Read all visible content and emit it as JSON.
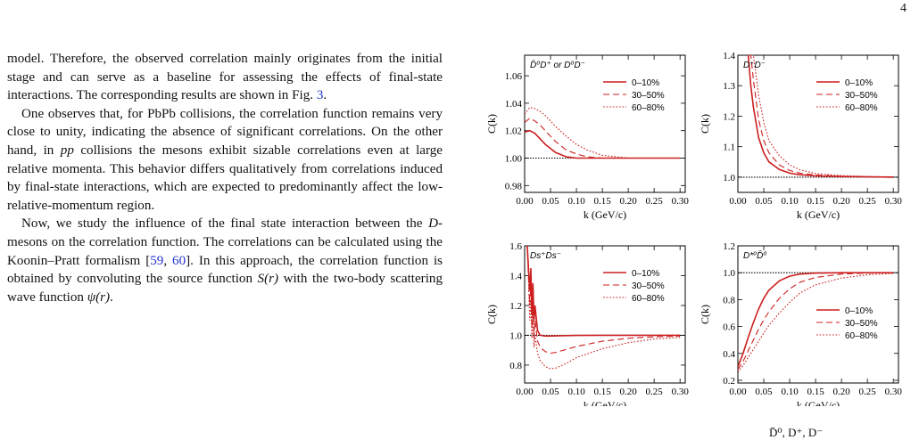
{
  "page": {
    "number": "4"
  },
  "body": {
    "p1": [
      "model. Therefore, the observed correlation mainly originates from the initial stage and can serve as a baseline for assessing the effects of final-state interactions. The corresponding results are shown in Fig. ",
      "3",
      "."
    ],
    "p2": [
      "One observes that, for PbPb collisions, the correlation function remains very close to unity, indicating the absence of significant correlations. On the other hand, in ",
      "pp",
      " collisions the mesons exhibit sizable correlations even at large relative momenta. This behavior differs qualitatively from correlations induced by final-state interactions, which are expected to predominantly affect the low-relative-momentum region."
    ],
    "p3": [
      "Now, we study the influence of the final state interaction between the ",
      "D",
      "-mesons on the correlation function. The correlations can be calculated using the Koonin–Pratt formalism [",
      "59",
      ", ",
      "60",
      "]. In this approach, the correlation function is obtained by convoluting the source function ",
      "S(r)",
      " with the two-body scattering wave function ",
      "ψ",
      "(r)",
      "."
    ]
  },
  "footer_fragment": "D̄⁰, D⁺, D⁻",
  "colors": {
    "curve": "#cc1f1f",
    "ref_line": "#000000",
    "link": "#2233cc"
  },
  "chart_data": [
    {
      "type": "line",
      "panel_label": "D̄⁰D⁺ or D⁰D⁻",
      "xlabel": "k (GeV/c)",
      "ylabel": "C(k)",
      "xlim": [
        0,
        0.31
      ],
      "ylim": [
        0.975,
        1.075
      ],
      "xticks": [
        "0.00",
        "0.05",
        "0.10",
        "0.15",
        "0.20",
        "0.25",
        "0.30"
      ],
      "yticks": [
        "0.98",
        "1.00",
        "1.02",
        "1.04",
        "1.06"
      ],
      "legend_position": "top-right",
      "reference_line": 1.0,
      "x": [
        0.0,
        0.01,
        0.02,
        0.03,
        0.04,
        0.05,
        0.06,
        0.08,
        0.1,
        0.12,
        0.15,
        0.2,
        0.25,
        0.3
      ],
      "series": [
        {
          "name": "0–10%",
          "style": "solid",
          "values": [
            1.019,
            1.02,
            1.018,
            1.014,
            1.01,
            1.007,
            1.004,
            1.001,
            1.0,
            1.0,
            1.0,
            1.0,
            1.0,
            1.0
          ]
        },
        {
          "name": "30–50%",
          "style": "dashed",
          "values": [
            1.026,
            1.029,
            1.027,
            1.024,
            1.02,
            1.016,
            1.012,
            1.006,
            1.003,
            1.001,
            1.0,
            1.0,
            1.0,
            1.0
          ]
        },
        {
          "name": "60–80%",
          "style": "dotted",
          "values": [
            1.032,
            1.037,
            1.036,
            1.034,
            1.031,
            1.027,
            1.023,
            1.016,
            1.01,
            1.006,
            1.002,
            1.0,
            1.0,
            1.0
          ]
        }
      ]
    },
    {
      "type": "line",
      "panel_label": "D⁺D⁻",
      "xlabel": "k (GeV/c)",
      "ylabel": "C(k)",
      "xlim": [
        0,
        0.31
      ],
      "ylim": [
        0.95,
        1.4
      ],
      "xticks": [
        "0.00",
        "0.05",
        "0.10",
        "0.15",
        "0.20",
        "0.25",
        "0.30"
      ],
      "yticks": [
        "1.0",
        "1.1",
        "1.2",
        "1.3",
        "1.4"
      ],
      "legend_position": "top-right",
      "reference_line": 1.0,
      "x": [
        0.02,
        0.025,
        0.03,
        0.04,
        0.05,
        0.06,
        0.08,
        0.1,
        0.12,
        0.15,
        0.2,
        0.25,
        0.3
      ],
      "series": [
        {
          "name": "0–10%",
          "style": "solid",
          "values": [
            1.4,
            1.3,
            1.23,
            1.13,
            1.08,
            1.05,
            1.025,
            1.013,
            1.008,
            1.004,
            1.002,
            1.001,
            1.0
          ]
        },
        {
          "name": "30–50%",
          "style": "dashed",
          "values": [
            1.4,
            1.4,
            1.32,
            1.19,
            1.12,
            1.08,
            1.04,
            1.022,
            1.013,
            1.007,
            1.003,
            1.001,
            1.001
          ]
        },
        {
          "name": "60–80%",
          "style": "dotted",
          "values": [
            1.4,
            1.4,
            1.4,
            1.27,
            1.18,
            1.12,
            1.07,
            1.04,
            1.024,
            1.012,
            1.005,
            1.002,
            1.001
          ]
        }
      ]
    },
    {
      "type": "line",
      "panel_label": "Ds⁺Ds⁻",
      "xlabel": "k (GeV/c)",
      "ylabel": "C(k)",
      "xlim": [
        0,
        0.31
      ],
      "ylim": [
        0.68,
        1.6
      ],
      "xticks": [
        "0.00",
        "0.05",
        "0.10",
        "0.15",
        "0.20",
        "0.25",
        "0.30"
      ],
      "yticks": [
        "0.8",
        "1.0",
        "1.2",
        "1.4",
        "1.6"
      ],
      "legend_position": "top-right",
      "reference_line": 1.0,
      "x": [
        0.005,
        0.01,
        0.012,
        0.014,
        0.016,
        0.018,
        0.02,
        0.025,
        0.03,
        0.04,
        0.05,
        0.06,
        0.08,
        0.1,
        0.15,
        0.2,
        0.25,
        0.3
      ],
      "series": [
        {
          "name": "0–10%",
          "style": "solid",
          "values": [
            1.6,
            1.3,
            1.45,
            1.15,
            1.35,
            1.1,
            1.2,
            1.03,
            1.0,
            0.995,
            0.995,
            0.996,
            0.998,
            0.999,
            1.0,
            1.0,
            1.0,
            1.0
          ]
        },
        {
          "name": "30–50%",
          "style": "dashed",
          "values": [
            1.6,
            1.2,
            1.35,
            1.05,
            1.25,
            0.98,
            1.1,
            0.96,
            0.92,
            0.89,
            0.88,
            0.885,
            0.905,
            0.925,
            0.96,
            0.98,
            0.99,
            0.995
          ]
        },
        {
          "name": "60–80%",
          "style": "dotted",
          "values": [
            1.6,
            1.1,
            1.25,
            0.98,
            1.15,
            0.92,
            1.0,
            0.88,
            0.83,
            0.79,
            0.775,
            0.78,
            0.81,
            0.85,
            0.91,
            0.95,
            0.975,
            0.985
          ]
        }
      ]
    },
    {
      "type": "line",
      "panel_label": "D*⁰D̄⁰",
      "xlabel": "k (GeV/c)",
      "ylabel": "C(k)",
      "xlim": [
        0,
        0.31
      ],
      "ylim": [
        0.18,
        1.2
      ],
      "xticks": [
        "0.00",
        "0.05",
        "0.10",
        "0.15",
        "0.20",
        "0.25",
        "0.30"
      ],
      "yticks": [
        "0.2",
        "0.4",
        "0.6",
        "0.8",
        "1.0",
        "1.2"
      ],
      "legend_position": "center-right",
      "reference_line": 1.0,
      "x": [
        0.0,
        0.01,
        0.02,
        0.03,
        0.04,
        0.05,
        0.06,
        0.08,
        0.1,
        0.12,
        0.15,
        0.2,
        0.25,
        0.3
      ],
      "series": [
        {
          "name": "0–10%",
          "style": "solid",
          "values": [
            0.3,
            0.4,
            0.52,
            0.63,
            0.73,
            0.81,
            0.87,
            0.94,
            0.975,
            0.99,
            0.997,
            1.0,
            1.0,
            1.0
          ]
        },
        {
          "name": "30–50%",
          "style": "dashed",
          "values": [
            0.28,
            0.34,
            0.42,
            0.5,
            0.58,
            0.65,
            0.71,
            0.81,
            0.88,
            0.93,
            0.965,
            0.99,
            0.997,
            1.0
          ]
        },
        {
          "name": "60–80%",
          "style": "dotted",
          "values": [
            0.26,
            0.31,
            0.37,
            0.43,
            0.49,
            0.55,
            0.61,
            0.7,
            0.78,
            0.85,
            0.91,
            0.96,
            0.985,
            0.995
          ]
        }
      ]
    }
  ]
}
